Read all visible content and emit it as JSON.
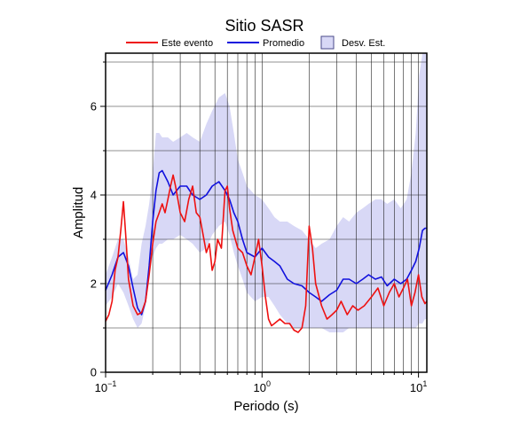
{
  "chart_data": {
    "type": "line",
    "title": "Sitio SASR",
    "xlabel": "Periodo (s)",
    "ylabel": "Amplitud",
    "xscale": "log",
    "xlim": [
      0.1,
      11.3
    ],
    "ylim": [
      0,
      7.2
    ],
    "x_ticks": [
      {
        "value": 0.1,
        "base": "10",
        "exp": "−1"
      },
      {
        "value": 1,
        "base": "10",
        "exp": "0"
      },
      {
        "value": 10,
        "base": "10",
        "exp": "1"
      }
    ],
    "y_ticks": [
      0,
      2,
      4,
      6
    ],
    "grid": true,
    "legend_position": "top",
    "colors": {
      "este_evento": "#ee1111",
      "promedio": "#1111dd",
      "band_fill": "#d8d8f6",
      "band_edge": "#4a4a8a",
      "grid": "#222222"
    },
    "legend": [
      {
        "label": "Este evento",
        "kind": "line",
        "series": "este_evento"
      },
      {
        "label": "Promedio",
        "kind": "line",
        "series": "promedio"
      },
      {
        "label": "Desv. Est.",
        "kind": "box",
        "series": "desv_est"
      }
    ],
    "series": [
      {
        "id": "desv_est",
        "name": "Desv. Est.",
        "kind": "band",
        "x": [
          0.1,
          0.11,
          0.12,
          0.13,
          0.14,
          0.15,
          0.16,
          0.17,
          0.18,
          0.19,
          0.2,
          0.21,
          0.22,
          0.23,
          0.25,
          0.27,
          0.3,
          0.33,
          0.36,
          0.4,
          0.44,
          0.48,
          0.53,
          0.58,
          0.62,
          0.66,
          0.7,
          0.75,
          0.8,
          0.9,
          1.0,
          1.1,
          1.2,
          1.3,
          1.45,
          1.6,
          1.8,
          2.0,
          2.2,
          2.4,
          2.7,
          3.0,
          3.3,
          3.6,
          4.0,
          4.4,
          4.8,
          5.3,
          5.8,
          6.3,
          7.0,
          7.7,
          8.4,
          9.0,
          9.6,
          10.1,
          10.6,
          11.0,
          11.3
        ],
        "upper": [
          2.2,
          2.6,
          3.0,
          3.0,
          2.6,
          2.1,
          2.2,
          2.9,
          3.3,
          3.8,
          4.5,
          5.4,
          5.4,
          5.3,
          5.3,
          5.2,
          5.3,
          5.4,
          5.3,
          5.2,
          5.6,
          5.9,
          6.2,
          6.3,
          6.0,
          5.4,
          4.8,
          4.5,
          4.2,
          4.0,
          3.9,
          3.7,
          3.5,
          3.4,
          3.4,
          3.3,
          3.2,
          3.0,
          2.8,
          2.9,
          3.0,
          3.3,
          3.5,
          3.4,
          3.6,
          3.7,
          3.8,
          3.9,
          3.9,
          3.8,
          3.9,
          3.7,
          3.9,
          4.5,
          5.4,
          6.7,
          7.2,
          7.2,
          7.2
        ],
        "lower": [
          1.5,
          1.7,
          2.0,
          1.8,
          1.5,
          1.2,
          1.0,
          1.1,
          1.5,
          2.2,
          2.6,
          2.8,
          2.9,
          2.9,
          3.0,
          3.0,
          3.1,
          3.0,
          2.9,
          2.7,
          2.8,
          3.1,
          3.3,
          3.4,
          3.1,
          2.7,
          2.4,
          2.1,
          1.8,
          1.6,
          1.7,
          1.7,
          1.5,
          1.3,
          1.1,
          1.0,
          1.0,
          1.0,
          1.0,
          1.0,
          0.9,
          0.9,
          0.9,
          1.0,
          1.0,
          1.0,
          1.0,
          1.0,
          1.0,
          1.0,
          1.0,
          1.0,
          1.0,
          1.0,
          1.0,
          1.1,
          1.1,
          1.2,
          1.2
        ]
      },
      {
        "id": "promedio",
        "name": "Promedio",
        "kind": "line",
        "x": [
          0.1,
          0.11,
          0.12,
          0.13,
          0.14,
          0.15,
          0.16,
          0.17,
          0.18,
          0.19,
          0.2,
          0.21,
          0.22,
          0.23,
          0.25,
          0.27,
          0.3,
          0.33,
          0.36,
          0.4,
          0.44,
          0.48,
          0.53,
          0.58,
          0.62,
          0.66,
          0.7,
          0.75,
          0.8,
          0.9,
          1.0,
          1.1,
          1.2,
          1.3,
          1.45,
          1.6,
          1.8,
          2.0,
          2.2,
          2.4,
          2.7,
          3.0,
          3.3,
          3.6,
          4.0,
          4.4,
          4.8,
          5.3,
          5.8,
          6.3,
          7.0,
          7.7,
          8.4,
          9.0,
          9.6,
          10.1,
          10.6,
          11.0,
          11.3
        ],
        "y": [
          1.85,
          2.2,
          2.6,
          2.7,
          2.4,
          1.9,
          1.45,
          1.3,
          1.6,
          2.4,
          3.4,
          4.1,
          4.5,
          4.55,
          4.3,
          4.0,
          4.2,
          4.2,
          4.0,
          3.9,
          4.0,
          4.2,
          4.3,
          4.1,
          3.9,
          3.6,
          3.4,
          3.0,
          2.7,
          2.6,
          2.8,
          2.6,
          2.5,
          2.4,
          2.1,
          2.0,
          1.95,
          1.8,
          1.7,
          1.6,
          1.75,
          1.85,
          2.1,
          2.1,
          2.0,
          2.1,
          2.2,
          2.1,
          2.15,
          1.95,
          2.1,
          2.0,
          2.1,
          2.3,
          2.5,
          2.8,
          3.2,
          3.25,
          3.25
        ]
      },
      {
        "id": "este_evento",
        "name": "Este evento",
        "kind": "line",
        "x": [
          0.1,
          0.105,
          0.11,
          0.115,
          0.12,
          0.125,
          0.13,
          0.135,
          0.14,
          0.15,
          0.16,
          0.17,
          0.18,
          0.19,
          0.2,
          0.21,
          0.22,
          0.23,
          0.24,
          0.25,
          0.26,
          0.27,
          0.28,
          0.3,
          0.32,
          0.34,
          0.36,
          0.38,
          0.4,
          0.42,
          0.44,
          0.46,
          0.48,
          0.5,
          0.52,
          0.55,
          0.58,
          0.6,
          0.62,
          0.65,
          0.7,
          0.75,
          0.8,
          0.85,
          0.9,
          0.95,
          1.0,
          1.05,
          1.1,
          1.15,
          1.2,
          1.3,
          1.4,
          1.5,
          1.6,
          1.7,
          1.8,
          1.9,
          2.0,
          2.1,
          2.2,
          2.4,
          2.6,
          2.8,
          3.0,
          3.2,
          3.5,
          3.8,
          4.1,
          4.5,
          5.0,
          5.5,
          6.0,
          6.5,
          7.0,
          7.5,
          8.0,
          8.5,
          9.0,
          9.5,
          10.0,
          10.5,
          11.0,
          11.3
        ],
        "y": [
          1.15,
          1.3,
          1.6,
          2.3,
          2.6,
          3.2,
          3.85,
          3.0,
          2.1,
          1.5,
          1.3,
          1.35,
          1.6,
          2.2,
          2.9,
          3.4,
          3.6,
          3.8,
          3.6,
          3.9,
          4.2,
          4.45,
          4.2,
          3.6,
          3.4,
          3.9,
          4.2,
          3.6,
          3.5,
          3.1,
          2.7,
          2.9,
          2.3,
          2.5,
          3.0,
          2.8,
          4.1,
          4.2,
          3.7,
          3.2,
          2.8,
          2.7,
          2.4,
          2.2,
          2.6,
          3.0,
          2.4,
          1.7,
          1.2,
          1.05,
          1.1,
          1.2,
          1.1,
          1.1,
          0.95,
          0.9,
          1.0,
          1.5,
          3.3,
          2.8,
          2.0,
          1.5,
          1.2,
          1.3,
          1.4,
          1.6,
          1.3,
          1.5,
          1.4,
          1.5,
          1.7,
          1.9,
          1.5,
          1.8,
          2.0,
          1.7,
          1.9,
          2.1,
          1.5,
          1.8,
          2.2,
          1.7,
          1.55,
          1.6
        ]
      }
    ]
  }
}
